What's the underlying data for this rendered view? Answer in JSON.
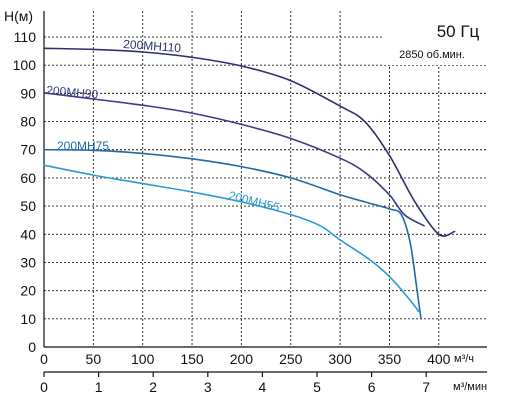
{
  "chart_data": {
    "type": "line",
    "y_axis_label": "H(м)",
    "y_ticks": [
      0,
      10,
      20,
      30,
      40,
      50,
      60,
      70,
      80,
      90,
      100,
      110
    ],
    "ylim": [
      0,
      120
    ],
    "x_flow_hour": {
      "unit": "м³/ч",
      "ticks": [
        0,
        50,
        100,
        150,
        200,
        250,
        300,
        350,
        400
      ],
      "xlim": [
        0,
        440
      ]
    },
    "x_flow_min": {
      "unit": "м³/мин",
      "ticks": [
        0,
        1,
        2,
        3,
        4,
        5,
        6,
        7
      ]
    },
    "grid": true,
    "info_box": {
      "frequency": "50 Гц",
      "speed": "2850 об.мин."
    },
    "series": [
      {
        "name": "200МН110",
        "color": "#2b3070",
        "points": [
          [
            0,
            106
          ],
          [
            50,
            105.6
          ],
          [
            100,
            104.7
          ],
          [
            150,
            102.8
          ],
          [
            200,
            99.7
          ],
          [
            250,
            94.5
          ],
          [
            300,
            85.5
          ],
          [
            325,
            80
          ],
          [
            350,
            68
          ],
          [
            375,
            52
          ],
          [
            400,
            40
          ],
          [
            416,
            41
          ]
        ]
      },
      {
        "name": "200МН90",
        "color": "#3c3b85",
        "points": [
          [
            0,
            90.2
          ],
          [
            50,
            88
          ],
          [
            100,
            85.8
          ],
          [
            150,
            83
          ],
          [
            200,
            79
          ],
          [
            250,
            74
          ],
          [
            300,
            67
          ],
          [
            325,
            62
          ],
          [
            350,
            54
          ],
          [
            365,
            47
          ],
          [
            385,
            43
          ]
        ]
      },
      {
        "name": "200МН75",
        "color": "#1f6aa8",
        "points": [
          [
            0,
            70
          ],
          [
            50,
            69.8
          ],
          [
            100,
            68.7
          ],
          [
            150,
            66.8
          ],
          [
            200,
            64
          ],
          [
            250,
            60
          ],
          [
            300,
            54
          ],
          [
            325,
            51.5
          ],
          [
            350,
            49
          ],
          [
            362,
            47
          ],
          [
            371,
            37
          ],
          [
            378,
            20
          ],
          [
            382,
            10
          ]
        ]
      },
      {
        "name": "200МН55",
        "color": "#2a9bd0",
        "points": [
          [
            0,
            64.5
          ],
          [
            50,
            61
          ],
          [
            100,
            58
          ],
          [
            150,
            55
          ],
          [
            200,
            51.5
          ],
          [
            250,
            47
          ],
          [
            280,
            43
          ],
          [
            300,
            38
          ],
          [
            330,
            31
          ],
          [
            350,
            25
          ],
          [
            370,
            17
          ],
          [
            380,
            12.5
          ]
        ]
      }
    ]
  }
}
